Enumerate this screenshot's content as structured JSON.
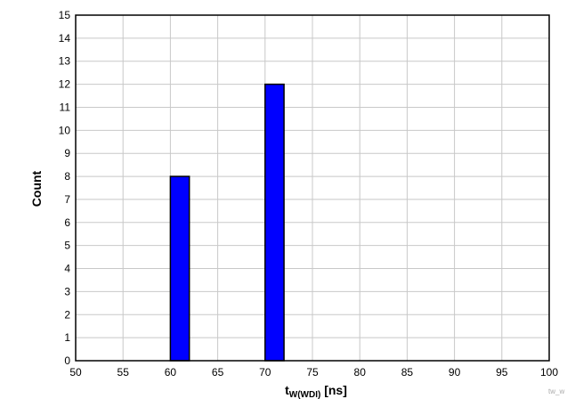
{
  "chart_data": {
    "type": "bar",
    "x": [
      61,
      71
    ],
    "values": [
      8,
      12
    ],
    "bar_width": 2,
    "xlim": [
      50,
      100
    ],
    "ylim": [
      0,
      15
    ],
    "xticks": [
      50,
      55,
      60,
      65,
      70,
      75,
      80,
      85,
      90,
      95,
      100
    ],
    "yticks": [
      0,
      1,
      2,
      3,
      4,
      5,
      6,
      7,
      8,
      9,
      10,
      11,
      12,
      13,
      14,
      15
    ],
    "xlabel_main": "t",
    "xlabel_sub": "W(WDI)",
    "xlabel_unit": " [ns]",
    "ylabel": "Count",
    "grid": true,
    "bar_color": "#0000ff",
    "watermark": "tw_w"
  }
}
